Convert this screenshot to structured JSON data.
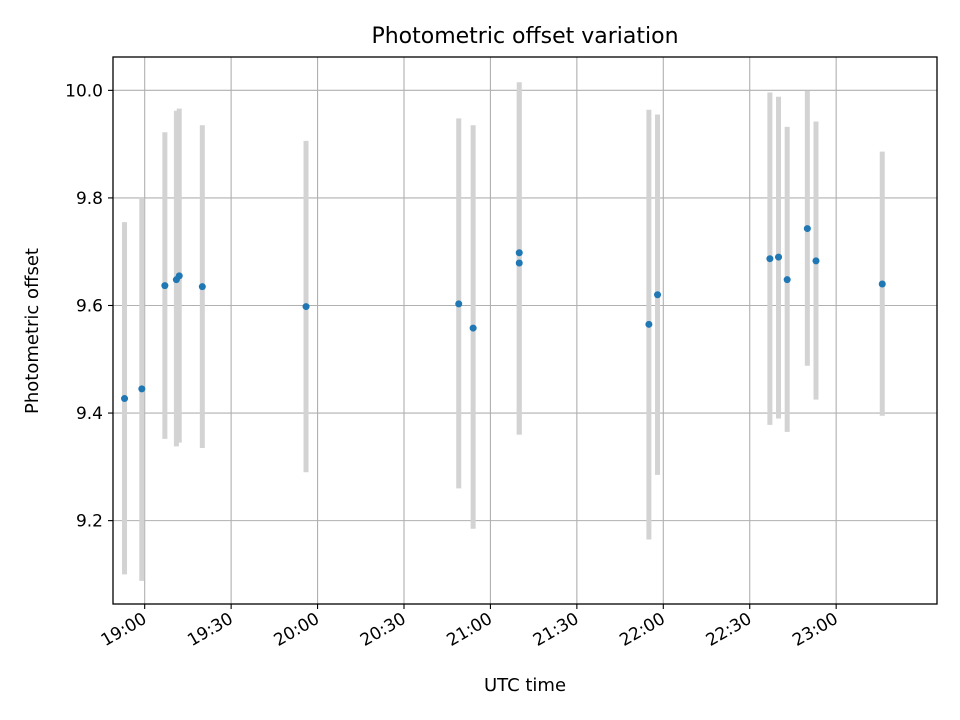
{
  "chart_data": {
    "type": "scatter",
    "title": "Photometric offset variation",
    "xlabel": "UTC time",
    "ylabel": "Photometric offset",
    "xlim": [
      "18:49",
      "23:35"
    ],
    "ylim": [
      9.045,
      10.062
    ],
    "xticks": [
      "19:00",
      "19:30",
      "20:00",
      "20:30",
      "21:00",
      "21:30",
      "22:00",
      "22:30",
      "23:00"
    ],
    "yticks": [
      "9.2",
      "9.4",
      "9.6",
      "9.8",
      "10.0"
    ],
    "grid": true,
    "colors": {
      "point": "#1f77b4",
      "errorbar": "#d3d3d3",
      "grid": "#b0b0b0"
    },
    "points": [
      {
        "x": "18:53",
        "y": 9.427,
        "ylow": 9.1,
        "yhigh": 9.755
      },
      {
        "x": "18:59",
        "y": 9.445,
        "ylow": 9.088,
        "yhigh": 9.8
      },
      {
        "x": "19:07",
        "y": 9.637,
        "ylow": 9.352,
        "yhigh": 9.922
      },
      {
        "x": "19:11",
        "y": 9.648,
        "ylow": 9.338,
        "yhigh": 9.962
      },
      {
        "x": "19:12",
        "y": 9.655,
        "ylow": 9.345,
        "yhigh": 9.966
      },
      {
        "x": "19:20",
        "y": 9.635,
        "ylow": 9.335,
        "yhigh": 9.935
      },
      {
        "x": "19:56",
        "y": 9.598,
        "ylow": 9.29,
        "yhigh": 9.906
      },
      {
        "x": "20:49",
        "y": 9.603,
        "ylow": 9.26,
        "yhigh": 9.948
      },
      {
        "x": "20:54",
        "y": 9.558,
        "ylow": 9.185,
        "yhigh": 9.935
      },
      {
        "x": "21:10",
        "y": 9.698,
        "ylow": 9.36,
        "yhigh": 10.015
      },
      {
        "x": "21:10",
        "y": 9.679,
        "ylow": 9.36,
        "yhigh": 9.998
      },
      {
        "x": "21:55",
        "y": 9.565,
        "ylow": 9.165,
        "yhigh": 9.964
      },
      {
        "x": "21:58",
        "y": 9.62,
        "ylow": 9.285,
        "yhigh": 9.955
      },
      {
        "x": "22:37",
        "y": 9.687,
        "ylow": 9.378,
        "yhigh": 9.996
      },
      {
        "x": "22:40",
        "y": 9.69,
        "ylow": 9.39,
        "yhigh": 9.988
      },
      {
        "x": "22:43",
        "y": 9.648,
        "ylow": 9.365,
        "yhigh": 9.932
      },
      {
        "x": "22:50",
        "y": 9.743,
        "ylow": 9.488,
        "yhigh": 9.999
      },
      {
        "x": "22:53",
        "y": 9.683,
        "ylow": 9.425,
        "yhigh": 9.942
      },
      {
        "x": "23:16",
        "y": 9.64,
        "ylow": 9.395,
        "yhigh": 9.886
      }
    ]
  }
}
